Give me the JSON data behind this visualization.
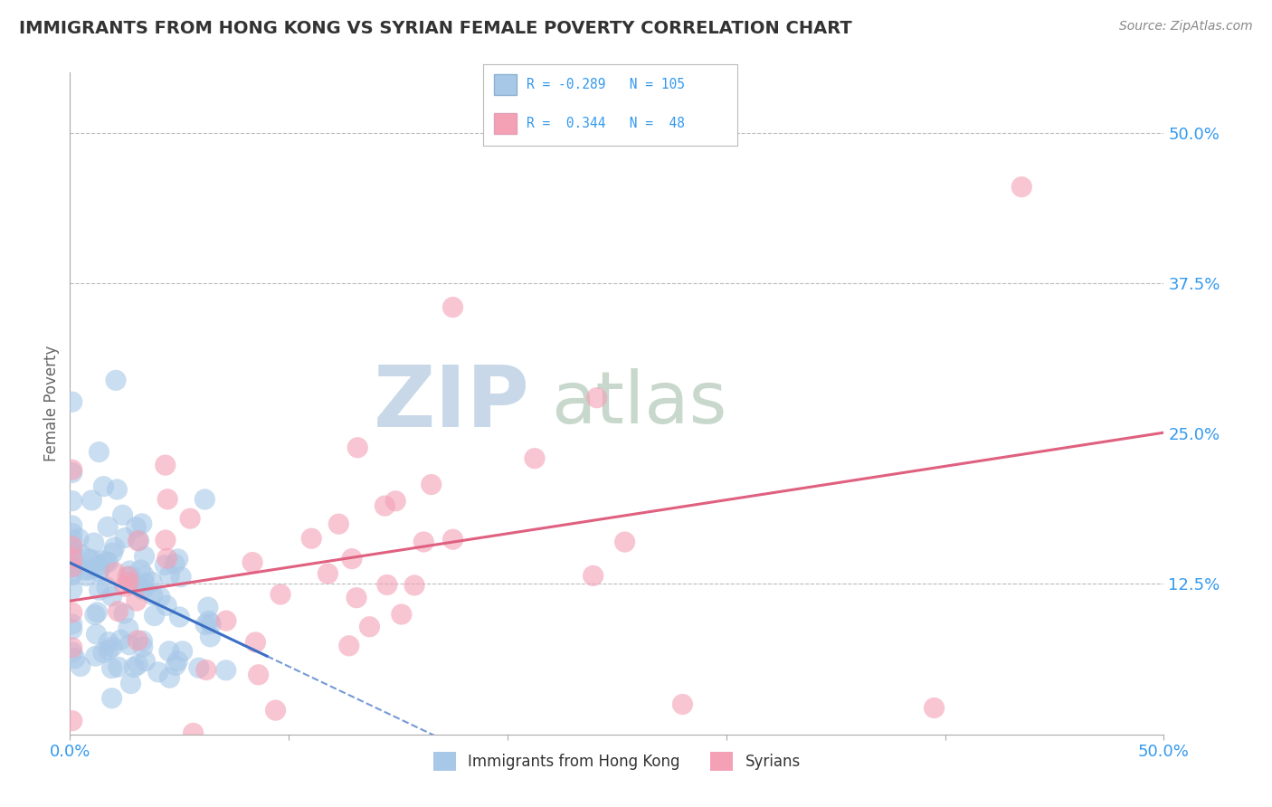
{
  "title": "IMMIGRANTS FROM HONG KONG VS SYRIAN FEMALE POVERTY CORRELATION CHART",
  "source": "Source: ZipAtlas.com",
  "xlabel_bottom": "Immigrants from Hong Kong",
  "xlabel_right": "Syrians",
  "ylabel": "Female Poverty",
  "xlim": [
    0.0,
    0.5
  ],
  "ylim": [
    0.0,
    0.55
  ],
  "xtick_labels": [
    "0.0%",
    "50.0%"
  ],
  "xtick_positions": [
    0.0,
    0.5
  ],
  "ytick_labels_right": [
    "12.5%",
    "25.0%",
    "37.5%",
    "50.0%"
  ],
  "ytick_positions_right": [
    0.125,
    0.25,
    0.375,
    0.5
  ],
  "hline_positions": [
    0.125,
    0.375
  ],
  "blue_color": "#a8c8e8",
  "pink_color": "#f4a0b5",
  "blue_line_color": "#3a6fc4",
  "pink_line_color": "#e06080",
  "title_color": "#333333",
  "source_color": "#888888",
  "watermark_zip_color": "#c8d8e8",
  "watermark_atlas_color": "#c8d8cc",
  "background_color": "#ffffff",
  "grid_color": "#bbbbbb",
  "axis_color": "#aaaaaa",
  "tick_label_color": "#3399ee",
  "seed": 42,
  "n_blue": 105,
  "n_pink": 48
}
